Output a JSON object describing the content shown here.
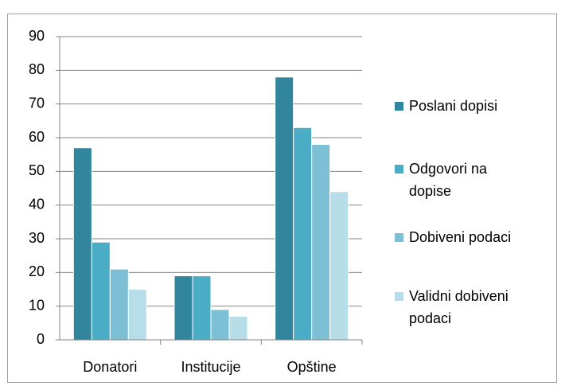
{
  "chart_data": {
    "type": "bar",
    "categories": [
      "Donatori",
      "Institucije",
      "Opštine"
    ],
    "series": [
      {
        "name": "Poslani dopisi",
        "color": "#31859c",
        "values": [
          57,
          19,
          78
        ]
      },
      {
        "name": "Odgovori na dopise",
        "color": "#4bacc6",
        "values": [
          29,
          19,
          63
        ]
      },
      {
        "name": "Dobiveni podaci",
        "color": "#7dbfd5",
        "values": [
          21,
          9,
          58
        ]
      },
      {
        "name": "Validni dobiveni podaci",
        "color": "#b7dde8",
        "values": [
          15,
          7,
          44
        ]
      }
    ],
    "ylim": [
      0,
      90
    ],
    "yticks": [
      0,
      10,
      20,
      30,
      40,
      50,
      60,
      70,
      80,
      90
    ],
    "grid": true,
    "legend": "right"
  }
}
